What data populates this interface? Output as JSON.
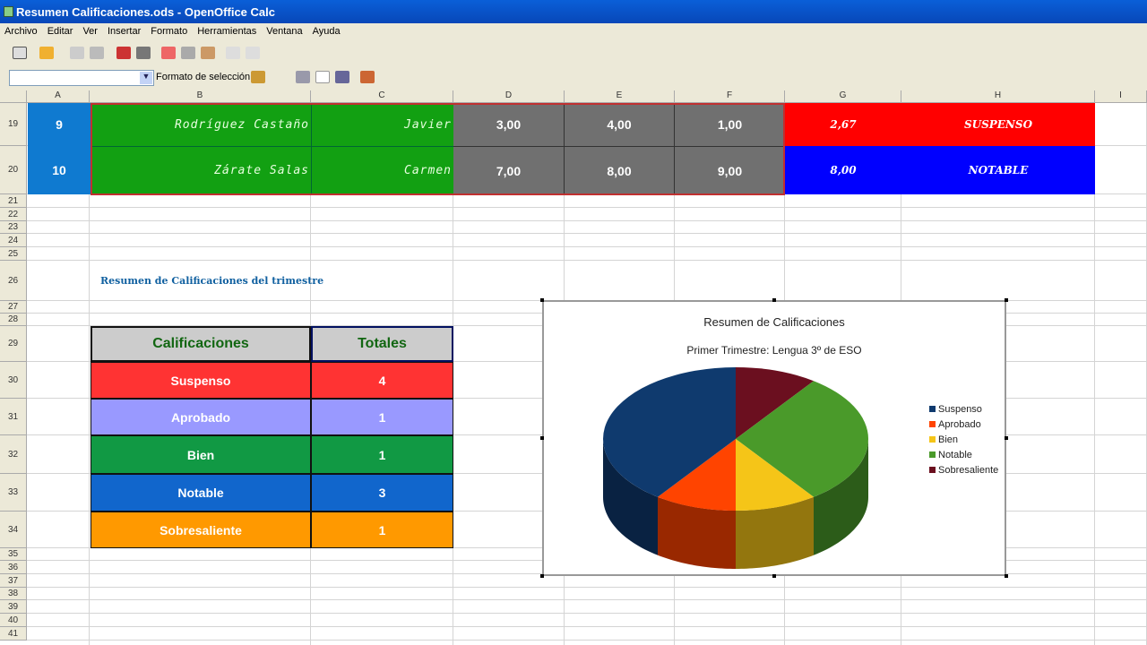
{
  "window": {
    "title": "Resumen Calificaciones.ods - OpenOffice Calc"
  },
  "menu": [
    "Archivo",
    "Editar",
    "Ver",
    "Insertar",
    "Formato",
    "Herramientas",
    "Ventana",
    "Ayuda"
  ],
  "toolbar": {
    "style_combo_value": "",
    "format_selection_label": "Formato de selección"
  },
  "columns": [
    "A",
    "B",
    "C",
    "D",
    "E",
    "F",
    "G",
    "H",
    "I"
  ],
  "rows": [
    "19",
    "20",
    "21",
    "22",
    "23",
    "24",
    "25",
    "26",
    "27",
    "28",
    "29",
    "30",
    "31",
    "32",
    "33",
    "34",
    "35",
    "36",
    "37",
    "38",
    "39",
    "40",
    "41"
  ],
  "students": [
    {
      "n": "9",
      "last": "Rodríguez Castaño",
      "first": "Javier",
      "d": "3,00",
      "e": "4,00",
      "f": "1,00",
      "avg": "2,67",
      "grade": "SUSPENSO",
      "color": "#ff0000"
    },
    {
      "n": "10",
      "last": "Zárate Salas",
      "first": "Carmen",
      "d": "7,00",
      "e": "8,00",
      "f": "9,00",
      "avg": "8,00",
      "grade": "NOTABLE",
      "color": "#0000ff"
    }
  ],
  "summary": {
    "heading": "Resumen de Calificaciones del trimestre",
    "col1": "Calificaciones",
    "col2": "Totales",
    "rows": [
      {
        "label": "Suspenso",
        "total": "4",
        "color": "#ff3333"
      },
      {
        "label": "Aprobado",
        "total": "1",
        "color": "#9999ff"
      },
      {
        "label": "Bien",
        "total": "1",
        "color": "#119944"
      },
      {
        "label": "Notable",
        "total": "3",
        "color": "#1166cc"
      },
      {
        "label": "Sobresaliente",
        "total": "1",
        "color": "#ff9900"
      }
    ]
  },
  "chart_data": {
    "type": "pie",
    "title": "Resumen de Calificaciones",
    "subtitle": "Primer Trimestre: Lengua 3º de ESO",
    "categories": [
      "Suspenso",
      "Aprobado",
      "Bien",
      "Notable",
      "Sobresaliente"
    ],
    "values": [
      4,
      1,
      1,
      3,
      1
    ],
    "colors": [
      "#0f3a6e",
      "#ff4400",
      "#f5c518",
      "#4a9a2a",
      "#6b0f1f"
    ],
    "legend": "right",
    "style": "3d"
  }
}
